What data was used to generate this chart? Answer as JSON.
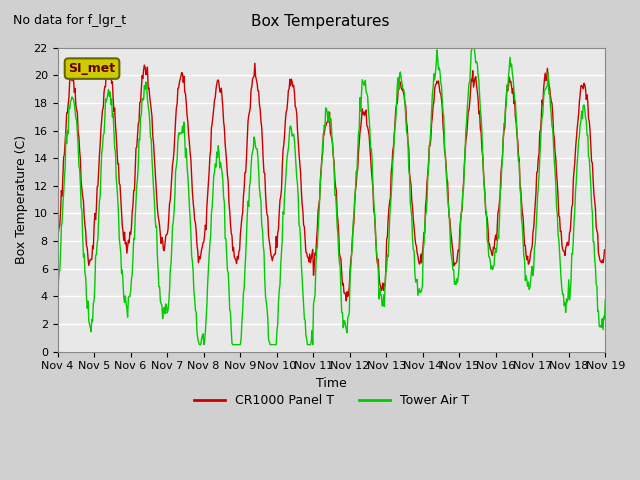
{
  "title": "Box Temperatures",
  "ylabel": "Box Temperature (C)",
  "xlabel": "Time",
  "no_data_text": "No data for f_lgr_t",
  "annotation_text": "SI_met",
  "ylim": [
    0,
    22
  ],
  "yticks": [
    0,
    2,
    4,
    6,
    8,
    10,
    12,
    14,
    16,
    18,
    20,
    22
  ],
  "xtick_labels": [
    "Nov 4",
    "Nov 5",
    "Nov 6",
    "Nov 7",
    "Nov 8",
    "Nov 9",
    "Nov 10",
    "Nov 11",
    "Nov 12",
    "Nov 13",
    "Nov 14",
    "Nov 15",
    "Nov 16",
    "Nov 17",
    "Nov 18",
    "Nov 19"
  ],
  "bg_color": "#e8e8e8",
  "plot_bg_color": "#e8e8e8",
  "grid_color": "white",
  "red_color": "#cc0000",
  "green_color": "#00cc00",
  "legend_labels": [
    "CR1000 Panel T",
    "Tower Air T"
  ],
  "figsize": [
    6.4,
    4.8
  ],
  "dpi": 100
}
